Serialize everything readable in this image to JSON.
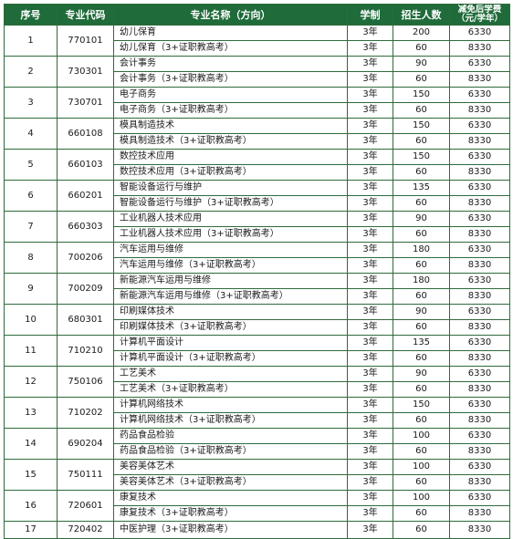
{
  "table": {
    "columns": [
      "序号",
      "专业代码",
      "专业名称（方向）",
      "学制",
      "招生人数",
      "减免后学费",
      "（元/学年）"
    ],
    "groups": [
      {
        "no": "1",
        "code": "770101",
        "rows": [
          {
            "name": "幼儿保育",
            "years": "3年",
            "enroll": "200",
            "fee": "6330"
          },
          {
            "name": "幼儿保育（3+证职教高考）",
            "years": "3年",
            "enroll": "60",
            "fee": "8330"
          }
        ]
      },
      {
        "no": "2",
        "code": "730301",
        "rows": [
          {
            "name": "会计事务",
            "years": "3年",
            "enroll": "90",
            "fee": "6330"
          },
          {
            "name": "会计事务（3+证职教高考）",
            "years": "3年",
            "enroll": "60",
            "fee": "8330"
          }
        ]
      },
      {
        "no": "3",
        "code": "730701",
        "rows": [
          {
            "name": "电子商务",
            "years": "3年",
            "enroll": "150",
            "fee": "6330"
          },
          {
            "name": "电子商务（3+证职教高考）",
            "years": "3年",
            "enroll": "60",
            "fee": "8330"
          }
        ]
      },
      {
        "no": "4",
        "code": "660108",
        "rows": [
          {
            "name": "模具制造技术",
            "years": "3年",
            "enroll": "150",
            "fee": "6330"
          },
          {
            "name": "模具制造技术（3+证职教高考）",
            "years": "3年",
            "enroll": "60",
            "fee": "8330"
          }
        ]
      },
      {
        "no": "5",
        "code": "660103",
        "rows": [
          {
            "name": "数控技术应用",
            "years": "3年",
            "enroll": "150",
            "fee": "6330"
          },
          {
            "name": "数控技术应用（3+证职教高考）",
            "years": "3年",
            "enroll": "60",
            "fee": "8330"
          }
        ]
      },
      {
        "no": "6",
        "code": "660201",
        "rows": [
          {
            "name": "智能设备运行与维护",
            "years": "3年",
            "enroll": "135",
            "fee": "6330"
          },
          {
            "name": "智能设备运行与维护（3+证职教高考）",
            "years": "3年",
            "enroll": "60",
            "fee": "8330"
          }
        ]
      },
      {
        "no": "7",
        "code": "660303",
        "rows": [
          {
            "name": "工业机器人技术应用",
            "years": "3年",
            "enroll": "90",
            "fee": "6330"
          },
          {
            "name": "工业机器人技术应用（3+证职教高考）",
            "years": "3年",
            "enroll": "60",
            "fee": "8330"
          }
        ]
      },
      {
        "no": "8",
        "code": "700206",
        "rows": [
          {
            "name": "汽车运用与维修",
            "years": "3年",
            "enroll": "180",
            "fee": "6330"
          },
          {
            "name": "汽车运用与维修（3+证职教高考）",
            "years": "3年",
            "enroll": "60",
            "fee": "8330"
          }
        ]
      },
      {
        "no": "9",
        "code": "700209",
        "rows": [
          {
            "name": "新能源汽车运用与维修",
            "years": "3年",
            "enroll": "180",
            "fee": "6330"
          },
          {
            "name": "新能源汽车运用与维修（3+证职教高考）",
            "years": "3年",
            "enroll": "60",
            "fee": "8330"
          }
        ]
      },
      {
        "no": "10",
        "code": "680301",
        "rows": [
          {
            "name": "印刷媒体技术",
            "years": "3年",
            "enroll": "90",
            "fee": "6330"
          },
          {
            "name": "印刷媒体技术（3+证职教高考）",
            "years": "3年",
            "enroll": "60",
            "fee": "8330"
          }
        ]
      },
      {
        "no": "11",
        "code": "710210",
        "rows": [
          {
            "name": "计算机平面设计",
            "years": "3年",
            "enroll": "135",
            "fee": "6330"
          },
          {
            "name": "计算机平面设计（3+证职教高考）",
            "years": "3年",
            "enroll": "60",
            "fee": "8330"
          }
        ]
      },
      {
        "no": "12",
        "code": "750106",
        "rows": [
          {
            "name": "工艺美术",
            "years": "3年",
            "enroll": "90",
            "fee": "6330"
          },
          {
            "name": "工艺美术（3+证职教高考）",
            "years": "3年",
            "enroll": "60",
            "fee": "8330"
          }
        ]
      },
      {
        "no": "13",
        "code": "710202",
        "rows": [
          {
            "name": "计算机网络技术",
            "years": "3年",
            "enroll": "150",
            "fee": "6330"
          },
          {
            "name": "计算机网络技术（3+证职教高考）",
            "years": "3年",
            "enroll": "60",
            "fee": "8330"
          }
        ]
      },
      {
        "no": "14",
        "code": "690204",
        "rows": [
          {
            "name": "药品食品检验",
            "years": "3年",
            "enroll": "100",
            "fee": "6330"
          },
          {
            "name": "药品食品检验（3+证职教高考）",
            "years": "3年",
            "enroll": "60",
            "fee": "8330"
          }
        ]
      },
      {
        "no": "15",
        "code": "750111",
        "rows": [
          {
            "name": "美容美体艺术",
            "years": "3年",
            "enroll": "100",
            "fee": "6330"
          },
          {
            "name": "美容美体艺术（3+证职教高考）",
            "years": "3年",
            "enroll": "60",
            "fee": "8330"
          }
        ]
      },
      {
        "no": "16",
        "code": "720601",
        "rows": [
          {
            "name": "康复技术",
            "years": "3年",
            "enroll": "100",
            "fee": "6330"
          },
          {
            "name": "康复技术（3+证职教高考）",
            "years": "3年",
            "enroll": "60",
            "fee": "8330"
          }
        ]
      },
      {
        "no": "17",
        "code": "720402",
        "rows": [
          {
            "name": "中医护理（3+证职教高考）",
            "years": "3年",
            "enroll": "60",
            "fee": "8330"
          }
        ]
      }
    ]
  }
}
